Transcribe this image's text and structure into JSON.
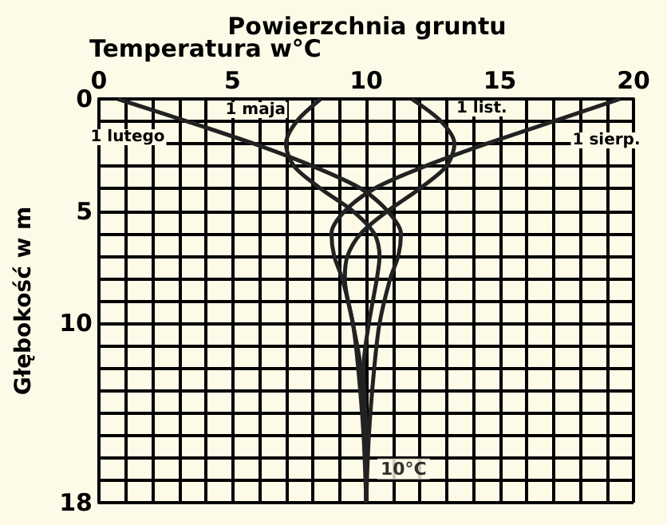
{
  "chart_data": {
    "type": "line",
    "title": "Powierzchnia gruntu",
    "xlabel": "Temperatura w°C",
    "ylabel": "Głębokość w m",
    "series": [
      {
        "name": "1 lutego",
        "color": "#222222",
        "x": [
          0.7,
          3.3,
          5.8,
          8,
          9.8,
          10.8,
          11.3,
          11.2,
          10.9,
          10.5,
          10.3,
          10.1,
          10
        ],
        "values": [
          0,
          1,
          2,
          3,
          4,
          5,
          6,
          7,
          8,
          10,
          12,
          15,
          18
        ]
      },
      {
        "name": "1 maja",
        "color": "#222222",
        "x": [
          8.3,
          7.4,
          7,
          7.3,
          8.3,
          9.5,
          10.3,
          10.5,
          10.4,
          10.1,
          9.9,
          10,
          10
        ],
        "values": [
          0,
          1,
          2,
          3,
          4,
          5,
          6,
          7,
          8,
          10,
          12,
          15,
          18
        ]
      },
      {
        "name": "1 list.",
        "color": "#222222",
        "x": [
          11.7,
          12.8,
          13.3,
          13,
          12,
          10.8,
          9.8,
          9.3,
          9.2,
          9.5,
          9.8,
          9.95,
          10
        ],
        "values": [
          0,
          1,
          2,
          3,
          4,
          5,
          6,
          7,
          8,
          10,
          12,
          15,
          18
        ]
      },
      {
        "name": "1 sierp.",
        "color": "#222222",
        "x": [
          19.5,
          17,
          14.5,
          12.2,
          10.3,
          9.2,
          8.7,
          8.8,
          9.1,
          9.5,
          9.7,
          9.9,
          10
        ],
        "values": [
          0,
          1,
          2,
          3,
          4,
          5,
          6,
          7,
          8,
          10,
          12,
          15,
          18
        ]
      }
    ],
    "annotations": [
      {
        "text": "10°C",
        "x": 10,
        "y": 16.5
      }
    ],
    "xlim": [
      0,
      20
    ],
    "xticks": [
      0,
      {
        "value": 1,
        "label": null
      },
      {
        "value": 2,
        "label": null
      },
      {
        "value": 3,
        "label": null
      },
      {
        "value": 4,
        "label": null
      },
      5,
      {
        "value": 6,
        "label": null
      },
      {
        "value": 7,
        "label": null
      },
      {
        "value": 8,
        "label": null
      },
      {
        "value": 9,
        "label": null
      },
      10,
      {
        "value": 11,
        "label": null
      },
      {
        "value": 12,
        "label": null
      },
      {
        "value": 13,
        "label": null
      },
      {
        "value": 14,
        "label": null
      },
      15,
      {
        "value": 16,
        "label": null
      },
      {
        "value": 17,
        "label": null
      },
      {
        "value": 18,
        "label": null
      },
      {
        "value": 19,
        "label": null
      },
      20
    ],
    "ylim": [
      18,
      0
    ],
    "yticks": [
      0,
      {
        "value": 1,
        "label": null
      },
      {
        "value": 2,
        "label": null
      },
      {
        "value": 3,
        "label": null
      },
      {
        "value": 4,
        "label": null
      },
      5,
      {
        "value": 6,
        "label": null
      },
      {
        "value": 7,
        "label": null
      },
      {
        "value": 8,
        "label": null
      },
      {
        "value": 9,
        "label": null
      },
      10,
      {
        "value": 11,
        "label": null
      },
      {
        "value": 12,
        "label": null
      },
      {
        "value": 13,
        "label": null
      },
      {
        "value": 14,
        "label": null
      },
      {
        "value": 15,
        "label": null
      },
      {
        "value": 16,
        "label": null
      },
      {
        "value": 17,
        "label": null
      },
      18
    ],
    "grid": true,
    "legend": false,
    "marker": "none",
    "line_style": "solid"
  }
}
